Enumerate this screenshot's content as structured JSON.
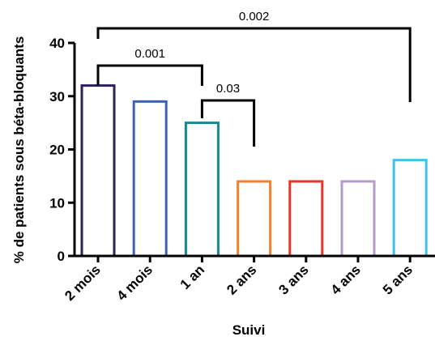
{
  "chart_data": {
    "type": "bar",
    "categories": [
      "2 mois",
      "4 mois",
      "1 an",
      "2 ans",
      "3 ans",
      "4 ans",
      "5 ans"
    ],
    "values": [
      32,
      29,
      25,
      14,
      14,
      14,
      18
    ],
    "bar_colors": [
      "#2e1f5e",
      "#3a63b4",
      "#138a91",
      "#f08231",
      "#e8332b",
      "#b49ccc",
      "#40c3eb"
    ],
    "xlabel": "Suivi",
    "ylabel": "% de patients sous béta-bloquants",
    "ylim": [
      0,
      40
    ],
    "yticks": [
      0,
      10,
      20,
      30,
      40
    ],
    "grid": false,
    "comparisons": [
      {
        "from": "2 mois",
        "to": "1 an",
        "p": "0.001"
      },
      {
        "from": "1 an",
        "to": "2 ans",
        "p": "0.03"
      },
      {
        "from": "2 mois",
        "to": "5 ans",
        "p": "0.002"
      }
    ]
  }
}
